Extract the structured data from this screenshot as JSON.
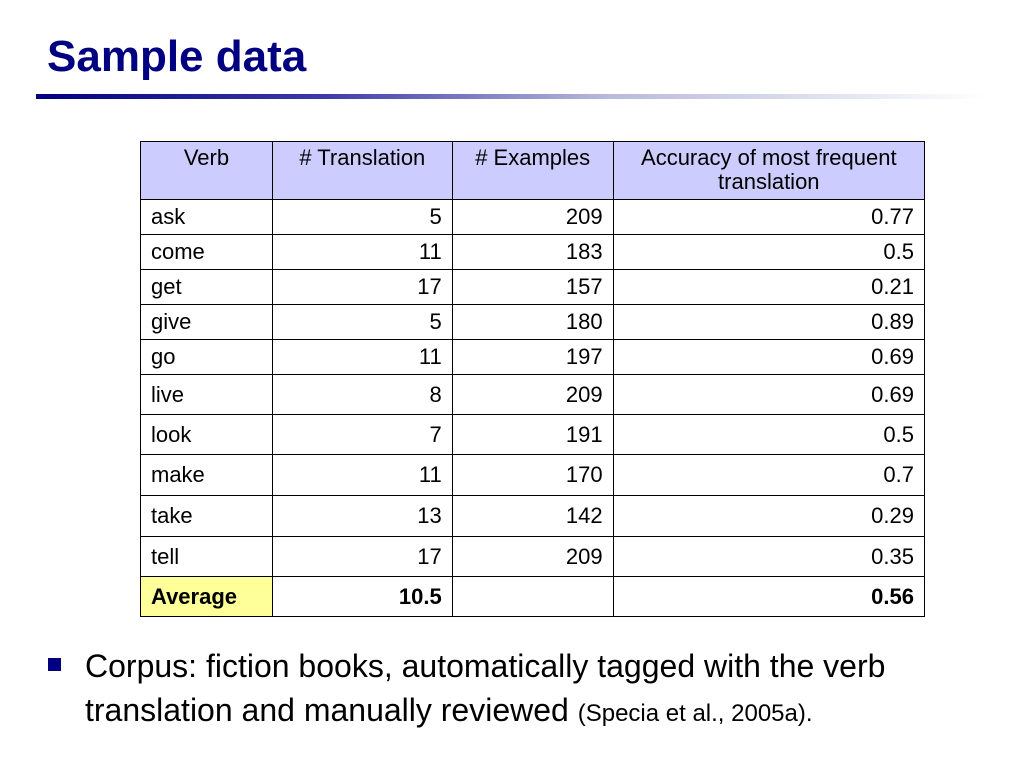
{
  "title": "Sample data",
  "table": {
    "headers": {
      "verb": "Verb",
      "translation": "# Translation",
      "examples": "# Examples",
      "accuracy": "Accuracy of most frequent translation"
    },
    "rows": [
      {
        "verb": "ask",
        "translation": "5",
        "examples": "209",
        "accuracy": "0.77"
      },
      {
        "verb": "come",
        "translation": "11",
        "examples": "183",
        "accuracy": "0.5"
      },
      {
        "verb": "get",
        "translation": "17",
        "examples": "157",
        "accuracy": "0.21"
      },
      {
        "verb": "give",
        "translation": "5",
        "examples": "180",
        "accuracy": "0.89"
      },
      {
        "verb": "go",
        "translation": "11",
        "examples": "197",
        "accuracy": "0.69"
      },
      {
        "verb": "live",
        "translation": "8",
        "examples": "209",
        "accuracy": "0.69"
      },
      {
        "verb": "look",
        "translation": "7",
        "examples": "191",
        "accuracy": "0.5"
      },
      {
        "verb": "make",
        "translation": "11",
        "examples": "170",
        "accuracy": "0.7"
      },
      {
        "verb": "take",
        "translation": "13",
        "examples": "142",
        "accuracy": "0.29"
      },
      {
        "verb": "tell",
        "translation": "17",
        "examples": "209",
        "accuracy": "0.35"
      }
    ],
    "average": {
      "label": "Average",
      "translation": "10.5",
      "examples": "",
      "accuracy": "0.56"
    }
  },
  "bullet": {
    "text": "Corpus: fiction books, automatically tagged with the verb translation and manually reviewed",
    "citation": "(Specia et al., 2005a)."
  },
  "colors": {
    "title": "#000080",
    "header_bg": "#ccccff",
    "average_bg": "#ffff99",
    "bullet": "#000080"
  }
}
